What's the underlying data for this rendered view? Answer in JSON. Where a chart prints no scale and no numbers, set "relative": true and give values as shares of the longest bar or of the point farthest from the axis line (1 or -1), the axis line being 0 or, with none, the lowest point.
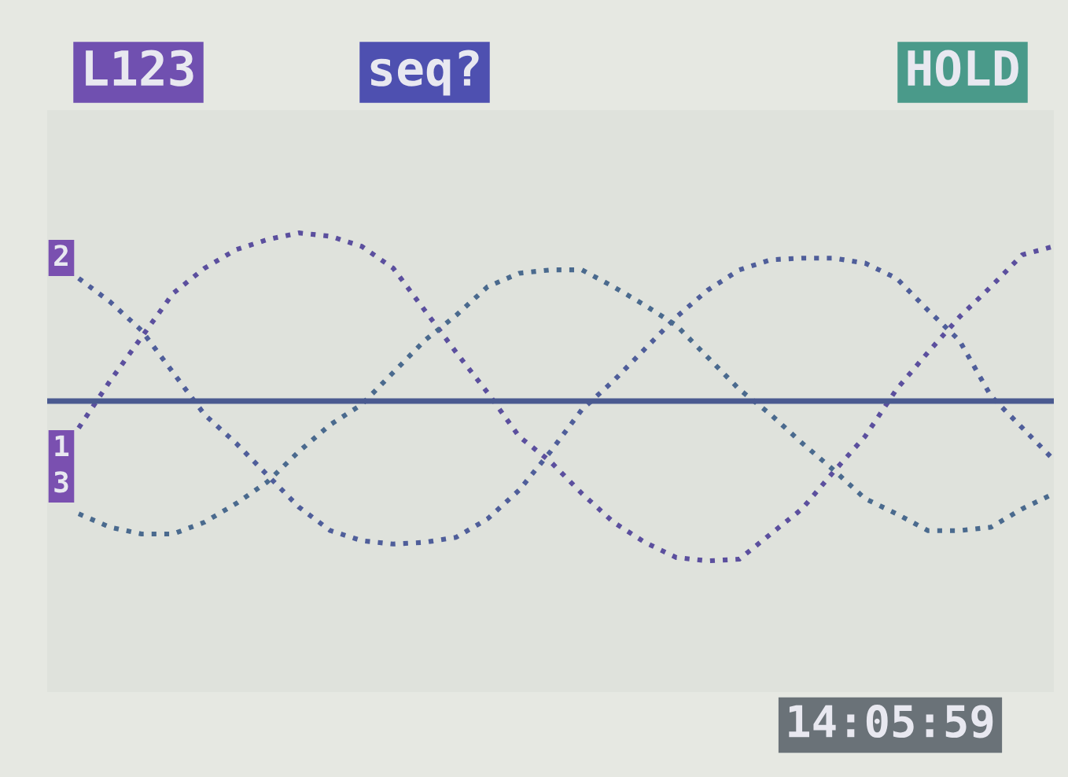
{
  "chart_data": {
    "type": "line",
    "relative": true,
    "categories": [
      null,
      null,
      null,
      null,
      null,
      null,
      null,
      null,
      null,
      null,
      null,
      null,
      null,
      null,
      null,
      null,
      null,
      null,
      null,
      null,
      null,
      null,
      null,
      null,
      null,
      null,
      null,
      null,
      null,
      null,
      null,
      null
    ],
    "series": [
      {
        "color": "#5b4f9e",
        "values": [
          -0.16,
          0.12,
          0.38,
          0.64,
          0.79,
          0.9,
          0.96,
          1.0,
          0.98,
          0.92,
          0.79,
          0.54,
          0.29,
          0.05,
          -0.21,
          -0.36,
          -0.55,
          -0.72,
          -0.84,
          -0.93,
          -0.95,
          -0.94,
          -0.79,
          -0.64,
          -0.42,
          -0.21,
          0.07,
          0.29,
          0.5,
          0.68,
          0.87,
          0.92
        ]
      },
      {
        "color": "#4f5e9a",
        "values": [
          0.73,
          0.59,
          0.42,
          0.17,
          -0.08,
          -0.25,
          -0.44,
          -0.63,
          -0.77,
          -0.83,
          -0.85,
          -0.84,
          -0.81,
          -0.7,
          -0.53,
          -0.3,
          -0.05,
          0.12,
          0.31,
          0.5,
          0.66,
          0.78,
          0.84,
          0.85,
          0.85,
          0.82,
          0.73,
          0.54,
          0.36,
          0.03,
          -0.16,
          -0.35
        ]
      },
      {
        "color": "#4a6a8e",
        "values": [
          -0.67,
          -0.75,
          -0.79,
          -0.79,
          -0.72,
          -0.61,
          -0.48,
          -0.3,
          -0.14,
          -0.02,
          0.17,
          0.36,
          0.51,
          0.68,
          0.76,
          0.78,
          0.78,
          0.68,
          0.57,
          0.45,
          0.26,
          0.07,
          -0.08,
          -0.25,
          -0.41,
          -0.58,
          -0.67,
          -0.77,
          -0.77,
          -0.75,
          -0.64,
          -0.55
        ]
      }
    ],
    "line_style": "dotted",
    "ref_lines": [
      {
        "axis": "y",
        "value": 0,
        "color": "#4a5a90"
      }
    ],
    "annotations": [
      "L123",
      "seq?",
      "HOLD",
      "14:05:59",
      "2",
      "1",
      "3"
    ]
  }
}
